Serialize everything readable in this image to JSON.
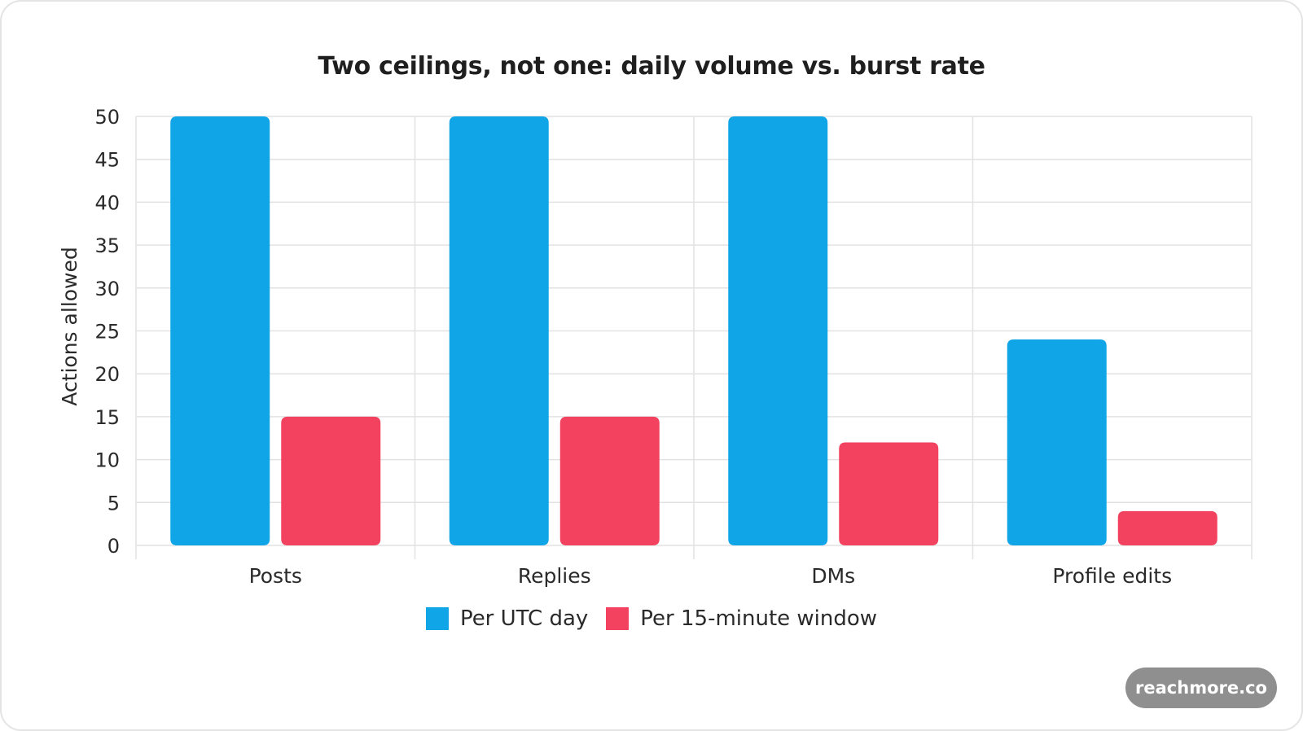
{
  "chart_data": {
    "type": "bar",
    "title": "Two ceilings, not one: daily volume vs. burst rate",
    "xlabel": "",
    "ylabel": "Actions allowed",
    "categories": [
      "Posts",
      "Replies",
      "DMs",
      "Profile edits"
    ],
    "series": [
      {
        "name": "Per UTC day",
        "values": [
          50,
          50,
          50,
          24
        ],
        "color": "#10a5e6"
      },
      {
        "name": "Per 15-minute window",
        "values": [
          15,
          15,
          12,
          4
        ],
        "color": "#f2425f"
      }
    ],
    "ylim": [
      0,
      50
    ],
    "yticks": [
      0,
      5,
      10,
      15,
      20,
      25,
      30,
      35,
      40,
      45,
      50
    ],
    "grid": true,
    "legend_position": "bottom-center"
  },
  "watermark": {
    "text": "reachmore.co"
  }
}
